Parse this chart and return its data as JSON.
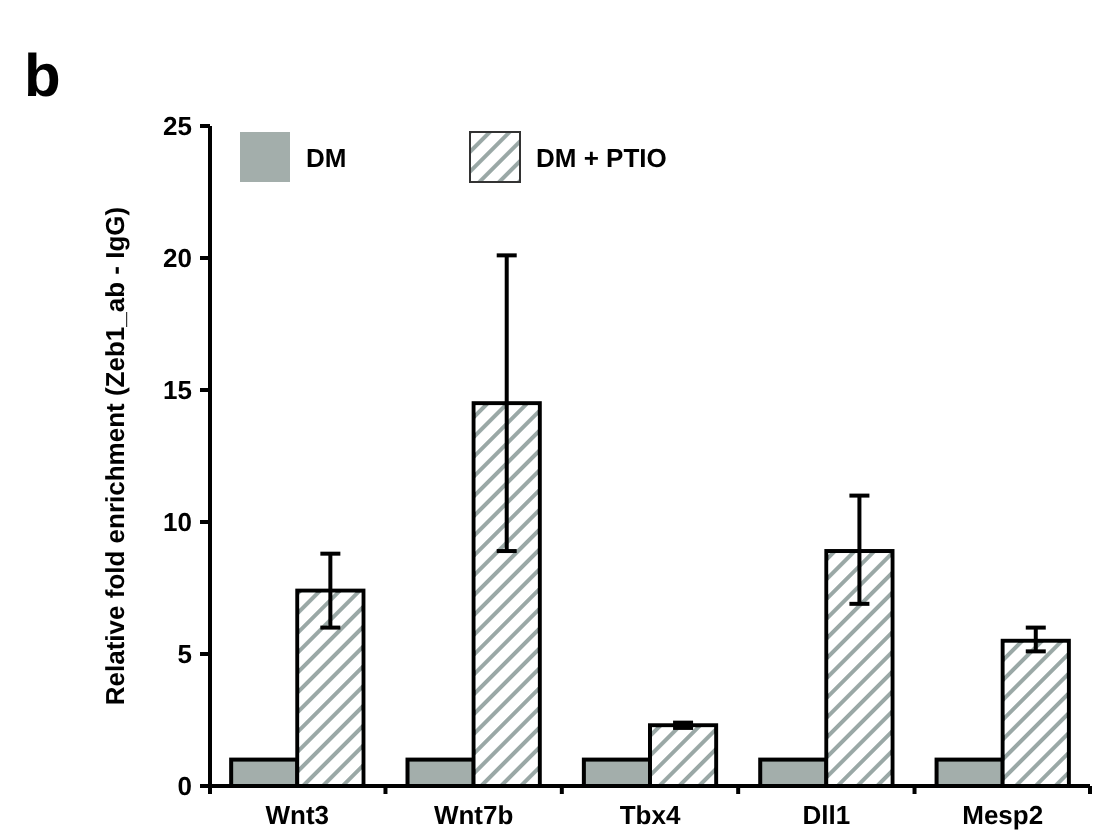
{
  "chart_data": {
    "type": "bar",
    "ylabel": "Relative fold enrichment (Zeb1_ab - IgG)",
    "annotations": [
      "b"
    ],
    "categories": [
      "Wnt3",
      "Wnt7b",
      "Tbx4",
      "Dll1",
      "Mesp2"
    ],
    "series": [
      {
        "name": "DM",
        "color": "#a3aeab",
        "values": [
          1,
          1,
          1,
          1,
          1
        ]
      },
      {
        "name": "DM + PTIO",
        "color": "#9aa8a6",
        "values": [
          7.4,
          14.5,
          2.3,
          8.9,
          5.5
        ],
        "errors": [
          [
            6.0,
            8.8
          ],
          [
            8.9,
            20.1
          ],
          [
            2.2,
            2.4
          ],
          [
            6.9,
            11.0
          ],
          [
            5.1,
            6.0
          ]
        ]
      }
    ],
    "ylim": [
      0,
      25
    ],
    "yticks": [
      0,
      5,
      10,
      15,
      20,
      25
    ],
    "grid": false,
    "legend": "top left"
  }
}
